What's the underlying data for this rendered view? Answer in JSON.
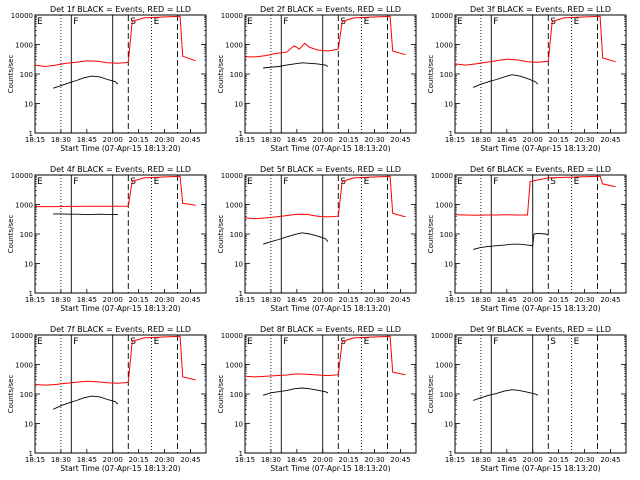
{
  "figure": {
    "xlabel": "Start Time (07-Apr-15 18:13:20)",
    "ylabel": "Counts/sec",
    "x_tick_labels": [
      "18:15",
      "18:30",
      "18:45",
      "20:00",
      "20:15",
      "20:30",
      "20:45"
    ],
    "y_tick_labels": [
      "1",
      "10",
      "100",
      "1000",
      "10000"
    ],
    "marker_labels": [
      "E",
      "F",
      "S",
      "E"
    ],
    "colors": {
      "events": "#000000",
      "lld": "#ff0000",
      "axes": "#000000"
    }
  },
  "chart_data": [
    {
      "type": "line",
      "title": "Det 1f BLACK = Events, RED = LLD",
      "yscale": "log",
      "ylim": [
        1,
        10000
      ],
      "x_ticks": [
        0,
        1,
        2,
        3,
        4,
        5,
        6
      ],
      "events": [
        [
          0.7,
          33
        ],
        [
          1.0,
          40
        ],
        [
          1.3,
          50
        ],
        [
          1.6,
          60
        ],
        [
          1.9,
          75
        ],
        [
          2.2,
          85
        ],
        [
          2.5,
          80
        ],
        [
          2.8,
          65
        ],
        [
          3.1,
          55
        ],
        [
          3.2,
          45
        ]
      ],
      "lld": [
        [
          0,
          200
        ],
        [
          0.4,
          180
        ],
        [
          0.8,
          200
        ],
        [
          1.2,
          230
        ],
        [
          1.6,
          250
        ],
        [
          2.0,
          280
        ],
        [
          2.4,
          270
        ],
        [
          2.8,
          240
        ],
        [
          3.2,
          230
        ],
        [
          3.6,
          250
        ],
        [
          3.75,
          6000
        ],
        [
          4.2,
          8000
        ],
        [
          5.6,
          9000
        ],
        [
          5.7,
          400
        ],
        [
          6.2,
          280
        ]
      ]
    },
    {
      "type": "line",
      "title": "Det 2f BLACK = Events, RED = LLD",
      "yscale": "log",
      "ylim": [
        1,
        10000
      ],
      "x_ticks": [
        0,
        1,
        2,
        3,
        4,
        5,
        6
      ],
      "events": [
        [
          0.7,
          160
        ],
        [
          1.0,
          170
        ],
        [
          1.3,
          180
        ],
        [
          1.6,
          200
        ],
        [
          1.9,
          220
        ],
        [
          2.2,
          240
        ],
        [
          2.5,
          230
        ],
        [
          2.8,
          220
        ],
        [
          3.1,
          200
        ],
        [
          3.2,
          180
        ]
      ],
      "lld": [
        [
          0,
          380
        ],
        [
          0.4,
          380
        ],
        [
          0.8,
          420
        ],
        [
          1.2,
          500
        ],
        [
          1.6,
          550
        ],
        [
          1.9,
          900
        ],
        [
          2.1,
          700
        ],
        [
          2.3,
          1100
        ],
        [
          2.5,
          800
        ],
        [
          2.8,
          650
        ],
        [
          3.2,
          600
        ],
        [
          3.6,
          700
        ],
        [
          3.75,
          6000
        ],
        [
          4.2,
          8000
        ],
        [
          5.6,
          9000
        ],
        [
          5.7,
          600
        ],
        [
          6.2,
          450
        ]
      ]
    },
    {
      "type": "line",
      "title": "Det 3f BLACK = Events, RED = LLD",
      "yscale": "log",
      "ylim": [
        1,
        10000
      ],
      "x_ticks": [
        0,
        1,
        2,
        3,
        4,
        5,
        6
      ],
      "events": [
        [
          0.7,
          35
        ],
        [
          1.0,
          45
        ],
        [
          1.3,
          55
        ],
        [
          1.6,
          65
        ],
        [
          1.9,
          80
        ],
        [
          2.2,
          95
        ],
        [
          2.5,
          85
        ],
        [
          2.8,
          70
        ],
        [
          3.1,
          55
        ],
        [
          3.2,
          45
        ]
      ],
      "lld": [
        [
          0,
          220
        ],
        [
          0.4,
          200
        ],
        [
          0.8,
          220
        ],
        [
          1.2,
          250
        ],
        [
          1.6,
          280
        ],
        [
          2.0,
          320
        ],
        [
          2.4,
          300
        ],
        [
          2.8,
          260
        ],
        [
          3.2,
          250
        ],
        [
          3.6,
          270
        ],
        [
          3.75,
          6000
        ],
        [
          4.2,
          8000
        ],
        [
          5.6,
          9000
        ],
        [
          5.7,
          350
        ],
        [
          6.2,
          260
        ]
      ]
    },
    {
      "type": "line",
      "title": "Det 4f BLACK = Events, RED = LLD",
      "yscale": "log",
      "ylim": [
        1,
        10000
      ],
      "x_ticks": [
        0,
        1,
        2,
        3,
        4,
        5,
        6
      ],
      "events": [
        [
          0.7,
          480
        ],
        [
          1.0,
          480
        ],
        [
          1.3,
          470
        ],
        [
          1.6,
          470
        ],
        [
          1.9,
          460
        ],
        [
          2.2,
          460
        ],
        [
          2.5,
          470
        ],
        [
          2.8,
          460
        ],
        [
          3.1,
          460
        ],
        [
          3.2,
          450
        ]
      ],
      "lld": [
        [
          0,
          850
        ],
        [
          0.4,
          850
        ],
        [
          0.8,
          850
        ],
        [
          1.2,
          860
        ],
        [
          1.6,
          860
        ],
        [
          2.0,
          870
        ],
        [
          2.4,
          870
        ],
        [
          2.8,
          870
        ],
        [
          3.2,
          870
        ],
        [
          3.6,
          880
        ],
        [
          3.75,
          6000
        ],
        [
          4.2,
          8000
        ],
        [
          5.6,
          9000
        ],
        [
          5.7,
          1100
        ],
        [
          6.2,
          950
        ]
      ]
    },
    {
      "type": "line",
      "title": "Det 5f BLACK = Events, RED = LLD",
      "yscale": "log",
      "ylim": [
        1,
        10000
      ],
      "x_ticks": [
        0,
        1,
        2,
        3,
        4,
        5,
        6
      ],
      "events": [
        [
          0.7,
          45
        ],
        [
          1.0,
          55
        ],
        [
          1.3,
          65
        ],
        [
          1.6,
          80
        ],
        [
          1.9,
          95
        ],
        [
          2.2,
          110
        ],
        [
          2.5,
          100
        ],
        [
          2.8,
          85
        ],
        [
          3.1,
          70
        ],
        [
          3.2,
          55
        ]
      ],
      "lld": [
        [
          0,
          350
        ],
        [
          0.4,
          330
        ],
        [
          0.8,
          350
        ],
        [
          1.2,
          380
        ],
        [
          1.6,
          420
        ],
        [
          2.0,
          470
        ],
        [
          2.4,
          460
        ],
        [
          2.8,
          400
        ],
        [
          3.2,
          380
        ],
        [
          3.6,
          400
        ],
        [
          3.75,
          6000
        ],
        [
          4.2,
          8000
        ],
        [
          5.6,
          9000
        ],
        [
          5.7,
          500
        ],
        [
          6.2,
          380
        ]
      ]
    },
    {
      "type": "line",
      "title": "Det 6f BLACK = Events, RED = LLD",
      "yscale": "log",
      "ylim": [
        1,
        10000
      ],
      "x_ticks": [
        0,
        1,
        2,
        3,
        4,
        5,
        6
      ],
      "events": [
        [
          0.7,
          30
        ],
        [
          1.0,
          35
        ],
        [
          1.3,
          38
        ],
        [
          1.6,
          40
        ],
        [
          1.9,
          42
        ],
        [
          2.2,
          45
        ],
        [
          2.5,
          45
        ],
        [
          2.8,
          42
        ],
        [
          3.0,
          40
        ],
        [
          3.05,
          100
        ],
        [
          3.2,
          105
        ],
        [
          3.5,
          100
        ],
        [
          3.6,
          90
        ]
      ],
      "lld": [
        [
          0,
          450
        ],
        [
          0.4,
          440
        ],
        [
          0.8,
          430
        ],
        [
          1.2,
          440
        ],
        [
          1.6,
          440
        ],
        [
          2.0,
          450
        ],
        [
          2.4,
          440
        ],
        [
          2.8,
          440
        ],
        [
          2.9,
          6000
        ],
        [
          3.6,
          8000
        ],
        [
          5.6,
          9000
        ],
        [
          5.7,
          5000
        ],
        [
          6.2,
          4000
        ]
      ]
    },
    {
      "type": "line",
      "title": "Det 7f BLACK = Events, RED = LLD",
      "yscale": "log",
      "ylim": [
        1,
        10000
      ],
      "x_ticks": [
        0,
        1,
        2,
        3,
        4,
        5,
        6
      ],
      "events": [
        [
          0.7,
          30
        ],
        [
          1.0,
          40
        ],
        [
          1.3,
          50
        ],
        [
          1.6,
          60
        ],
        [
          1.9,
          75
        ],
        [
          2.2,
          85
        ],
        [
          2.5,
          80
        ],
        [
          2.8,
          65
        ],
        [
          3.1,
          55
        ],
        [
          3.2,
          45
        ]
      ],
      "lld": [
        [
          0,
          210
        ],
        [
          0.4,
          200
        ],
        [
          0.8,
          210
        ],
        [
          1.2,
          230
        ],
        [
          1.6,
          250
        ],
        [
          2.0,
          270
        ],
        [
          2.4,
          260
        ],
        [
          2.8,
          240
        ],
        [
          3.2,
          230
        ],
        [
          3.6,
          250
        ],
        [
          3.75,
          6000
        ],
        [
          4.2,
          8000
        ],
        [
          5.6,
          9000
        ],
        [
          5.7,
          380
        ],
        [
          6.2,
          300
        ]
      ]
    },
    {
      "type": "line",
      "title": "Det 8f BLACK = Events, RED = LLD",
      "yscale": "log",
      "ylim": [
        1,
        10000
      ],
      "x_ticks": [
        0,
        1,
        2,
        3,
        4,
        5,
        6
      ],
      "events": [
        [
          0.7,
          90
        ],
        [
          1.0,
          110
        ],
        [
          1.3,
          120
        ],
        [
          1.6,
          130
        ],
        [
          1.9,
          150
        ],
        [
          2.2,
          160
        ],
        [
          2.5,
          150
        ],
        [
          2.8,
          135
        ],
        [
          3.1,
          120
        ],
        [
          3.2,
          110
        ]
      ],
      "lld": [
        [
          0,
          400
        ],
        [
          0.4,
          380
        ],
        [
          0.8,
          400
        ],
        [
          1.2,
          420
        ],
        [
          1.6,
          440
        ],
        [
          2.0,
          480
        ],
        [
          2.4,
          470
        ],
        [
          2.8,
          440
        ],
        [
          3.2,
          420
        ],
        [
          3.6,
          450
        ],
        [
          3.75,
          6000
        ],
        [
          4.2,
          8000
        ],
        [
          5.6,
          9000
        ],
        [
          5.7,
          550
        ],
        [
          6.2,
          450
        ]
      ]
    },
    {
      "type": "line",
      "title": "Det 9f BLACK = Events, RED = LLD",
      "yscale": "log",
      "ylim": [
        1,
        10000
      ],
      "x_ticks": [
        0,
        1,
        2,
        3,
        4,
        5,
        6
      ],
      "events": [
        [
          0.7,
          60
        ],
        [
          1.0,
          75
        ],
        [
          1.3,
          90
        ],
        [
          1.6,
          105
        ],
        [
          1.9,
          125
        ],
        [
          2.2,
          140
        ],
        [
          2.5,
          130
        ],
        [
          2.8,
          115
        ],
        [
          3.1,
          100
        ],
        [
          3.2,
          90
        ]
      ],
      "lld": []
    }
  ]
}
